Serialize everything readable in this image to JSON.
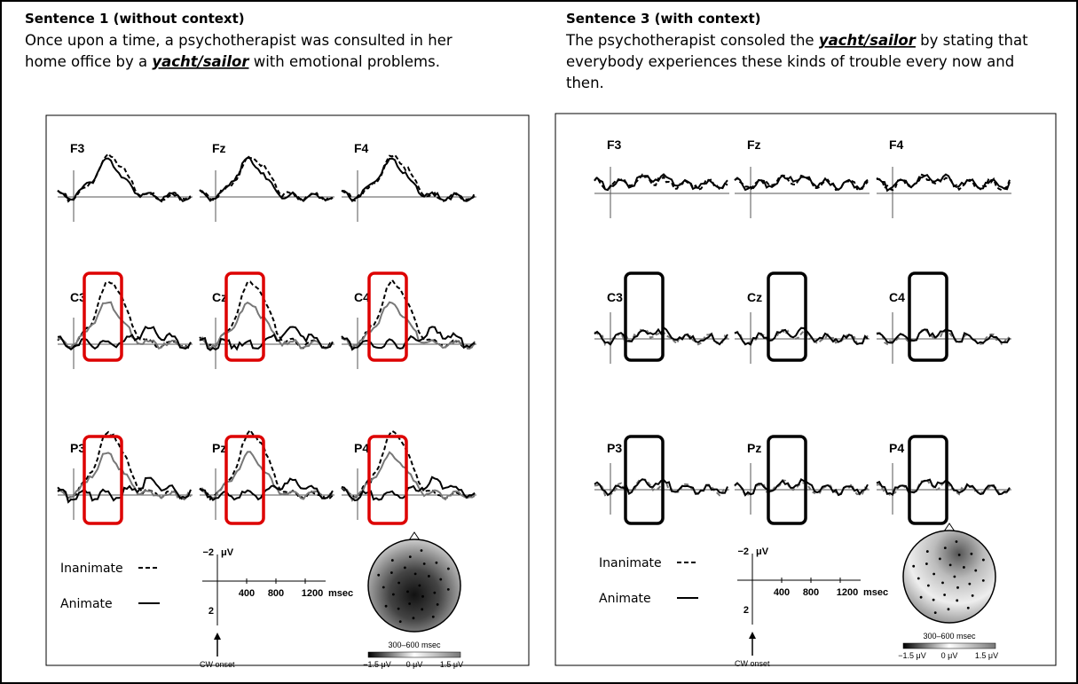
{
  "panels": [
    {
      "heading": "Sentence 1 (without context)",
      "sentence": {
        "lines": [
          [
            "Once upon a time, a psychotherapist was consulted in her"
          ],
          [
            "home office by a ",
            "yacht/sailor",
            " with emotional problems."
          ]
        ]
      },
      "electrodes": [
        "F3",
        "Fz",
        "F4",
        "C3",
        "Cz",
        "C4",
        "P3",
        "Pz",
        "P4"
      ],
      "legend": {
        "inanimate": "Inanimate",
        "animate": "Animate"
      },
      "scale": {
        "top": "−2",
        "unit": "μV",
        "bottom": "2",
        "ticks": [
          "400",
          "800",
          "1200"
        ],
        "xunit": "msec",
        "onset": "CW onset"
      },
      "topo": {
        "window": "300–600 msec",
        "colorbar": [
          "−1.5 μV",
          "0 μV",
          "1.5 μV"
        ]
      }
    },
    {
      "heading": "Sentence 3 (with context)",
      "sentence": {
        "lines": [
          [
            "The psychotherapist consoled the ",
            "yacht/sailor",
            " by stating that"
          ],
          [
            "everybody experiences these kinds of trouble every now and"
          ],
          [
            "then."
          ]
        ]
      },
      "electrodes": [
        "F3",
        "Fz",
        "F4",
        "C3",
        "Cz",
        "C4",
        "P3",
        "Pz",
        "P4"
      ],
      "legend": {
        "inanimate": "Inanimate",
        "animate": "Animate"
      },
      "scale": {
        "top": "−2",
        "unit": "μV",
        "bottom": "2",
        "ticks": [
          "400",
          "800",
          "1200"
        ],
        "xunit": "msec",
        "onset": "CW onset"
      },
      "topo": {
        "window": "300–600 msec",
        "colorbar": [
          "−1.5 μV",
          "0 μV",
          "1.5 μV"
        ]
      }
    }
  ]
}
